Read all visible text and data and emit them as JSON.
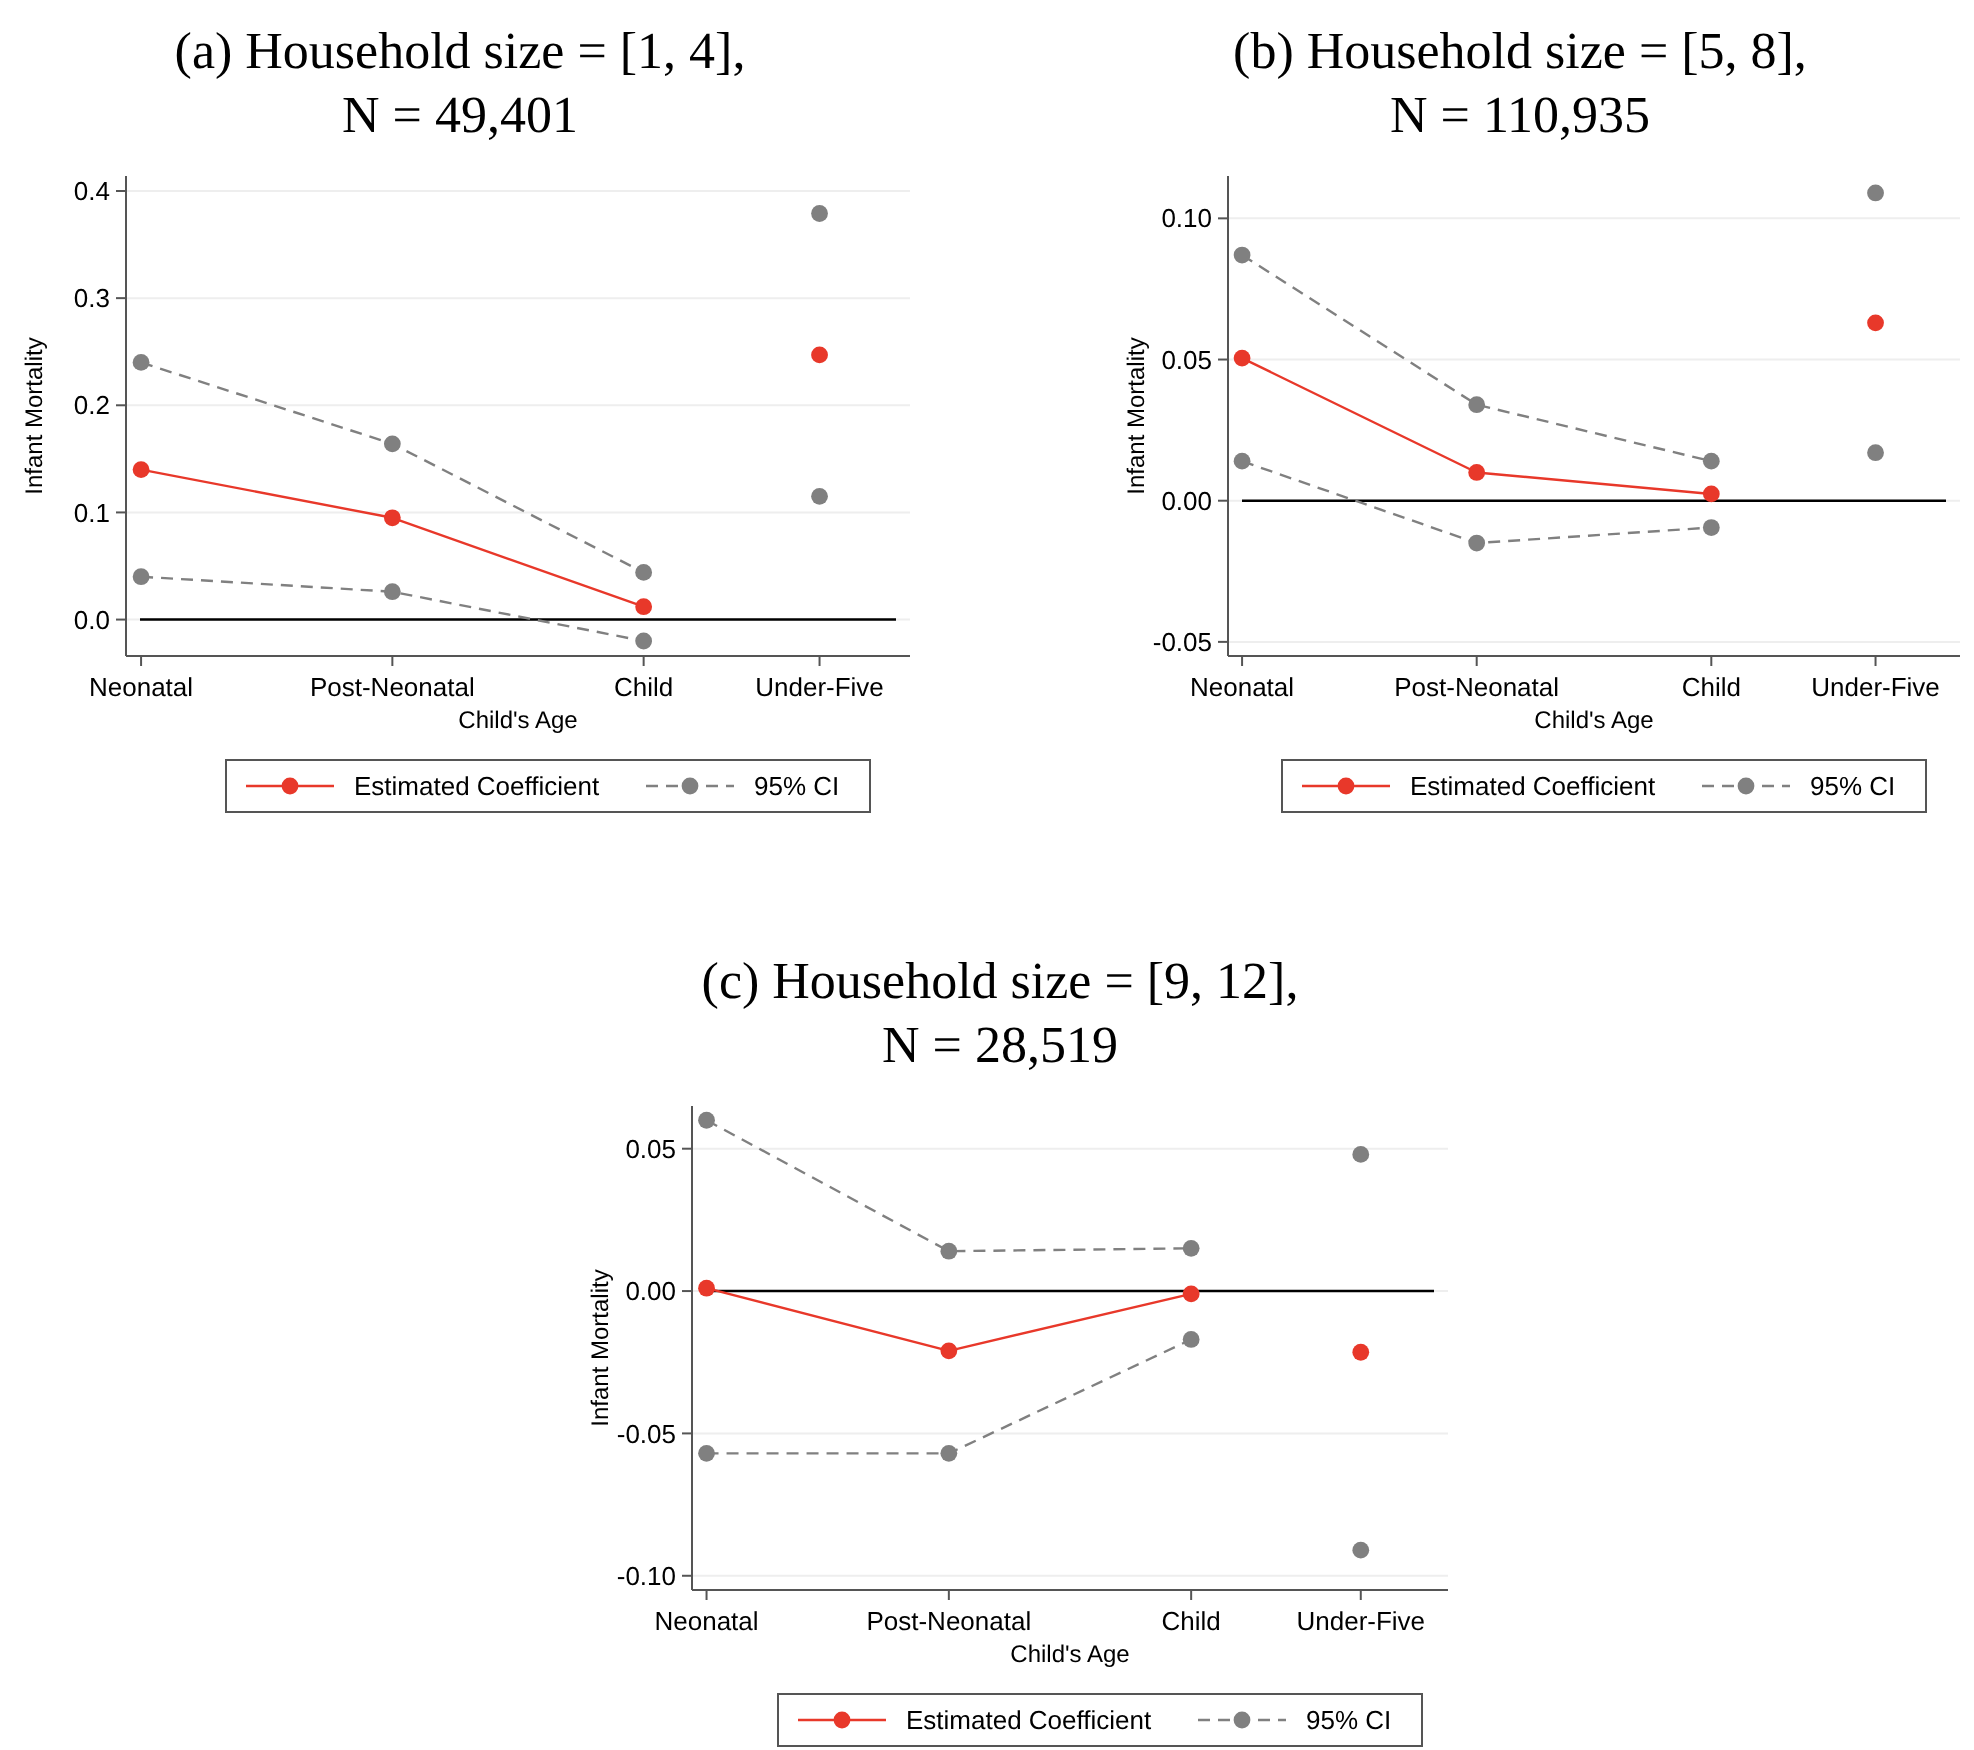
{
  "chart_data": [
    {
      "type": "line",
      "title": "(a) Household size = [1, 4],\nN = 49,401",
      "xlabel": "Child's Age",
      "ylabel": "Infant Mortality",
      "categories": [
        "Neonatal",
        "Post-Neonatal",
        "Child",
        "Under-Five"
      ],
      "ylim": [
        -0.034,
        0.414
      ],
      "yticks": [
        {
          "value": 0,
          "label": "0.0"
        },
        0.1,
        0.2,
        0.3,
        0.4
      ],
      "grid": "y",
      "legend": "bottom",
      "ref_lines": [
        {
          "axis": "y",
          "value": 0,
          "color": "#000000"
        }
      ],
      "series": [
        {
          "name": "Estimated Coefficient",
          "color": "#e8382a",
          "line_style": "solid",
          "marker": "circle",
          "values": [
            0.14,
            0.095,
            0.012,
            null
          ]
        },
        {
          "type": "scatter",
          "color": "#e8382a",
          "marker": "circle",
          "values": [
            null,
            null,
            null,
            0.247
          ]
        },
        {
          "name": "95% CI",
          "color": "#808080",
          "line_style": "dashed",
          "marker": "circle",
          "values": [
            0.24,
            0.164,
            0.044,
            null
          ]
        },
        {
          "color": "#808080",
          "line_style": "dashed",
          "marker": "circle",
          "values": [
            0.04,
            0.026,
            -0.02,
            null
          ]
        },
        {
          "type": "scatter",
          "color": "#808080",
          "marker": "circle",
          "values": [
            null,
            null,
            null,
            0.379
          ]
        },
        {
          "type": "scatter",
          "color": "#808080",
          "marker": "circle",
          "values": [
            null,
            null,
            null,
            0.115
          ]
        }
      ]
    },
    {
      "type": "line",
      "title": "(b) Household size = [5, 8],\nN = 110,935",
      "xlabel": "Child's Age",
      "ylabel": "Infant Mortality",
      "categories": [
        "Neonatal",
        "Post-Neonatal",
        "Child",
        "Under-Five"
      ],
      "ylim": [
        -0.055,
        0.115
      ],
      "yticks": [
        -0.05,
        {
          "value": 0,
          "label": "0.00"
        },
        0.05,
        {
          "value": 0.1,
          "label": "0.10"
        }
      ],
      "grid": "y",
      "legend": "bottom",
      "ref_lines": [
        {
          "axis": "y",
          "value": 0,
          "color": "#000000"
        }
      ],
      "series": [
        {
          "name": "Estimated Coefficient",
          "color": "#e8382a",
          "line_style": "solid",
          "marker": "circle",
          "values": [
            0.0505,
            0.01,
            0.0024,
            null
          ]
        },
        {
          "type": "scatter",
          "color": "#e8382a",
          "marker": "circle",
          "values": [
            null,
            null,
            null,
            0.063
          ]
        },
        {
          "name": "95% CI",
          "color": "#808080",
          "line_style": "dashed",
          "marker": "circle",
          "values": [
            0.087,
            0.034,
            0.014,
            null
          ]
        },
        {
          "color": "#808080",
          "line_style": "dashed",
          "marker": "circle",
          "values": [
            0.014,
            -0.015,
            -0.0095,
            null
          ]
        },
        {
          "type": "scatter",
          "color": "#808080",
          "marker": "circle",
          "values": [
            null,
            null,
            null,
            0.109
          ]
        },
        {
          "type": "scatter",
          "color": "#808080",
          "marker": "circle",
          "values": [
            null,
            null,
            null,
            0.017
          ]
        }
      ]
    },
    {
      "type": "line",
      "title": "(c) Household size = [9, 12],\nN = 28,519",
      "xlabel": "Child's Age",
      "ylabel": "Infant Mortality",
      "categories": [
        "Neonatal",
        "Post-Neonatal",
        "Child",
        "Under-Five"
      ],
      "ylim": [
        -0.105,
        0.065
      ],
      "yticks": [
        {
          "value": -0.1,
          "label": "-0.10"
        },
        -0.05,
        {
          "value": 0,
          "label": "0.00"
        },
        0.05
      ],
      "grid": "y",
      "legend": "bottom",
      "ref_lines": [
        {
          "axis": "y",
          "value": 0,
          "color": "#000000"
        }
      ],
      "series": [
        {
          "name": "Estimated Coefficient",
          "color": "#e8382a",
          "line_style": "solid",
          "marker": "circle",
          "values": [
            0.001,
            -0.021,
            -0.001,
            null
          ]
        },
        {
          "type": "scatter",
          "color": "#e8382a",
          "marker": "circle",
          "values": [
            null,
            null,
            null,
            -0.0215
          ]
        },
        {
          "name": "95% CI",
          "color": "#808080",
          "line_style": "dashed",
          "marker": "circle",
          "values": [
            0.06,
            0.014,
            0.015,
            null
          ]
        },
        {
          "color": "#808080",
          "line_style": "dashed",
          "marker": "circle",
          "values": [
            -0.057,
            -0.057,
            -0.017,
            null
          ]
        },
        {
          "type": "scatter",
          "color": "#808080",
          "marker": "circle",
          "values": [
            null,
            null,
            null,
            0.048
          ]
        },
        {
          "type": "scatter",
          "color": "#808080",
          "marker": "circle",
          "values": [
            null,
            null,
            null,
            -0.091
          ]
        }
      ]
    }
  ]
}
